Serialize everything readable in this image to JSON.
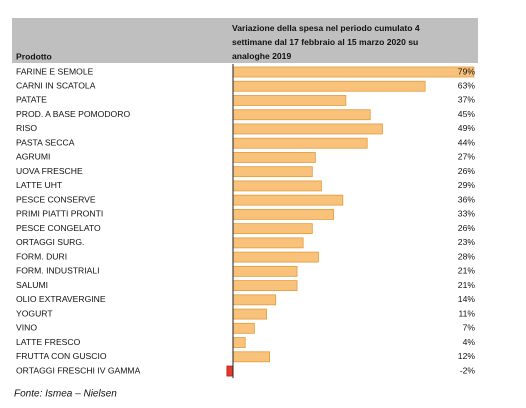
{
  "chart_data": {
    "type": "bar",
    "orientation": "horizontal",
    "column_header": "Prodotto",
    "title": "Variazione della spesa nel periodo cumulato 4 settimane dal 17 febbraio al 15 marzo 2020 su analoghe 2019",
    "categories": [
      "FARINE E SEMOLE",
      "CARNI IN SCATOLA",
      "PATATE",
      "PROD. A BASE POMODORO",
      "RISO",
      "PASTA SECCA",
      "AGRUMI",
      "UOVA FRESCHE",
      "LATTE UHT",
      "PESCE CONSERVE",
      "PRIMI PIATTI PRONTI",
      "PESCE CONGELATO",
      "ORTAGGI SURG.",
      "FORM. DURI",
      "FORM. INDUSTRIALI",
      "SALUMI",
      "OLIO EXTRAVERGINE",
      "YOGURT",
      "VINO",
      "LATTE FRESCO",
      "FRUTTA CON GUSCIO",
      "ORTAGGI FRESCHI IV GAMMA"
    ],
    "values": [
      79,
      63,
      37,
      45,
      49,
      44,
      27,
      26,
      29,
      36,
      33,
      26,
      23,
      28,
      21,
      21,
      14,
      11,
      7,
      4,
      12,
      -2
    ],
    "value_labels": [
      "79%",
      "63%",
      "37%",
      "45%",
      "49%",
      "44%",
      "27%",
      "26%",
      "29%",
      "36%",
      "33%",
      "26%",
      "23%",
      "28%",
      "21%",
      "21%",
      "14%",
      "11%",
      "7%",
      "4%",
      "12%",
      "-2%"
    ],
    "color": "#f8c27a",
    "negative_color": "#e8362a",
    "source": "Fonte: Ismea – Nielsen"
  }
}
